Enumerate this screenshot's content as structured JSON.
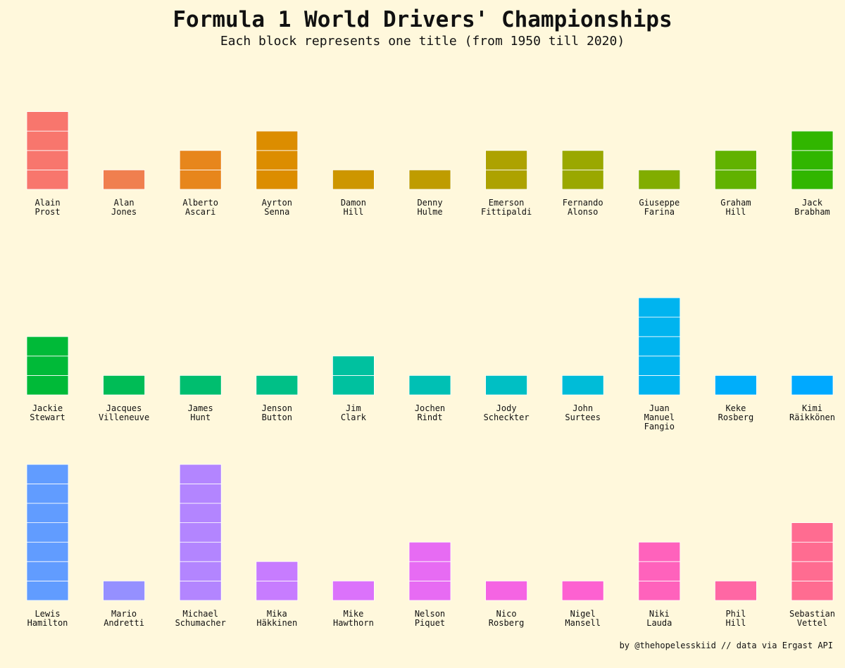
{
  "chart_data": {
    "type": "bar",
    "title": "Formula 1 World Drivers' Championships",
    "subtitle": "Each block represents one title (from 1950 till 2020)",
    "credit": "by @thehopelesskiid // data via Ergast API",
    "unit": "titles (one block = one title)",
    "drivers": [
      {
        "name": [
          "Alain",
          "Prost"
        ],
        "titles": 4,
        "color": "#f8766d"
      },
      {
        "name": [
          "Alan",
          "Jones"
        ],
        "titles": 1,
        "color": "#f07f4f"
      },
      {
        "name": [
          "Alberto",
          "Ascari"
        ],
        "titles": 2,
        "color": "#e7861c"
      },
      {
        "name": [
          "Ayrton",
          "Senna"
        ],
        "titles": 3,
        "color": "#dc8d00"
      },
      {
        "name": [
          "Damon",
          "Hill"
        ],
        "titles": 1,
        "color": "#cd9600"
      },
      {
        "name": [
          "Denny",
          "Hulme"
        ],
        "titles": 1,
        "color": "#bf9c00"
      },
      {
        "name": [
          "Emerson",
          "Fittipaldi"
        ],
        "titles": 2,
        "color": "#ada200"
      },
      {
        "name": [
          "Fernando",
          "Alonso"
        ],
        "titles": 2,
        "color": "#9aa800"
      },
      {
        "name": [
          "Giuseppe",
          "Farina"
        ],
        "titles": 1,
        "color": "#81ad00"
      },
      {
        "name": [
          "Graham",
          "Hill"
        ],
        "titles": 2,
        "color": "#61b200"
      },
      {
        "name": [
          "Jack",
          "Brabham"
        ],
        "titles": 3,
        "color": "#31b600"
      },
      {
        "name": [
          "Jackie",
          "Stewart"
        ],
        "titles": 3,
        "color": "#00ba38"
      },
      {
        "name": [
          "Jacques",
          "Villeneuve"
        ],
        "titles": 1,
        "color": "#00bc56"
      },
      {
        "name": [
          "James",
          "Hunt"
        ],
        "titles": 1,
        "color": "#00be6f"
      },
      {
        "name": [
          "Jenson",
          "Button"
        ],
        "titles": 1,
        "color": "#00c087"
      },
      {
        "name": [
          "Jim",
          "Clark"
        ],
        "titles": 2,
        "color": "#00c19f"
      },
      {
        "name": [
          "Jochen",
          "Rindt"
        ],
        "titles": 1,
        "color": "#00c0b4"
      },
      {
        "name": [
          "Jody",
          "Scheckter"
        ],
        "titles": 1,
        "color": "#00bfc4"
      },
      {
        "name": [
          "John",
          "Surtees"
        ],
        "titles": 1,
        "color": "#00bcd8"
      },
      {
        "name": [
          "Juan",
          "Manuel",
          "Fangio"
        ],
        "titles": 5,
        "color": "#00b4ef"
      },
      {
        "name": [
          "Keke",
          "Rosberg"
        ],
        "titles": 1,
        "color": "#00aefa"
      },
      {
        "name": [
          "Kimi",
          "Räikkönen"
        ],
        "titles": 1,
        "color": "#00a9ff"
      },
      {
        "name": [
          "Lewis",
          "Hamilton"
        ],
        "titles": 7,
        "color": "#619cff"
      },
      {
        "name": [
          "Mario",
          "Andretti"
        ],
        "titles": 1,
        "color": "#9590ff"
      },
      {
        "name": [
          "Michael",
          "Schumacher"
        ],
        "titles": 7,
        "color": "#b385ff"
      },
      {
        "name": [
          "Mika",
          "Häkkinen"
        ],
        "titles": 2,
        "color": "#c77cff"
      },
      {
        "name": [
          "Mike",
          "Hawthorn"
        ],
        "titles": 1,
        "color": "#db72fb"
      },
      {
        "name": [
          "Nelson",
          "Piquet"
        ],
        "titles": 3,
        "color": "#e76bf3"
      },
      {
        "name": [
          "Nico",
          "Rosberg"
        ],
        "titles": 1,
        "color": "#f564e3"
      },
      {
        "name": [
          "Nigel",
          "Mansell"
        ],
        "titles": 1,
        "color": "#fd61d1"
      },
      {
        "name": [
          "Niki",
          "Lauda"
        ],
        "titles": 3,
        "color": "#ff62bc"
      },
      {
        "name": [
          "Phil",
          "Hill"
        ],
        "titles": 1,
        "color": "#ff67a4"
      },
      {
        "name": [
          "Sebastian",
          "Vettel"
        ],
        "titles": 4,
        "color": "#ff6c91"
      }
    ],
    "columns_per_row": 11,
    "grid": false,
    "legend": "none"
  },
  "theme": {
    "background": "#fff8dc",
    "block_separator": "#ffffff"
  }
}
